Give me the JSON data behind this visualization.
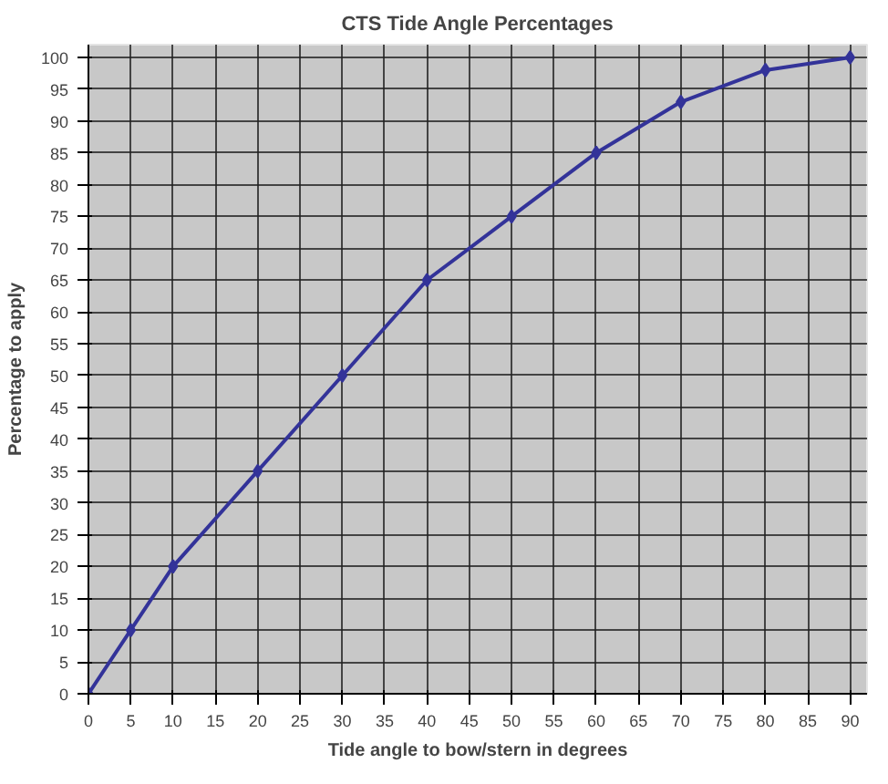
{
  "chart_data": {
    "type": "line",
    "title": "CTS Tide Angle Percentages",
    "xlabel": "Tide angle to bow/stern in degrees",
    "ylabel": "Percentage to apply",
    "x": [
      0,
      5,
      10,
      20,
      30,
      40,
      50,
      60,
      70,
      80,
      90
    ],
    "series": [
      {
        "color": "#333399",
        "values": [
          0,
          10,
          20,
          35,
          50,
          65,
          75,
          85,
          93,
          98,
          100
        ]
      }
    ],
    "xlim": [
      0,
      92
    ],
    "xticks": [
      0,
      5,
      10,
      15,
      20,
      25,
      30,
      35,
      40,
      45,
      50,
      55,
      60,
      65,
      70,
      75,
      80,
      85,
      90
    ],
    "ylim": [
      0,
      102
    ],
    "yticks": [
      0,
      5,
      10,
      15,
      20,
      25,
      30,
      35,
      40,
      45,
      50,
      55,
      60,
      65,
      70,
      75,
      80,
      85,
      90,
      95,
      100
    ],
    "grid": true,
    "marker": "diamond",
    "line_style": "solid"
  }
}
